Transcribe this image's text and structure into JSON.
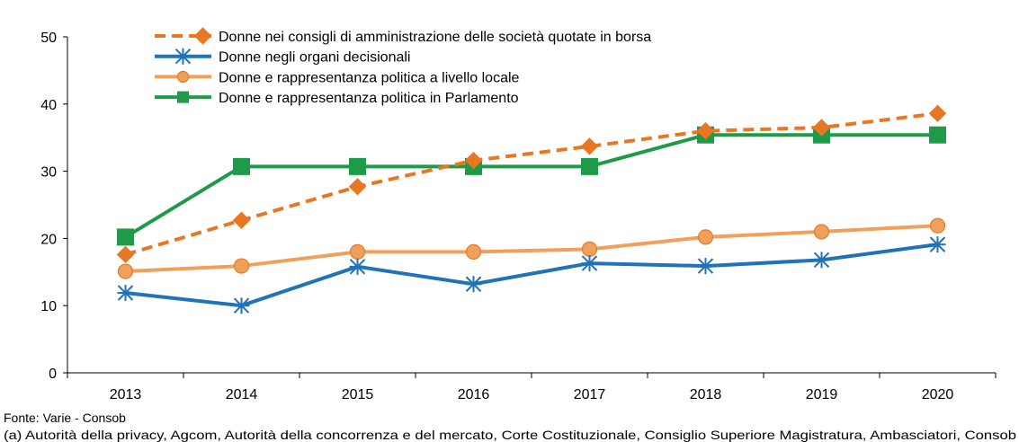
{
  "chart_data": {
    "type": "line",
    "categories": [
      "2013",
      "2014",
      "2015",
      "2016",
      "2017",
      "2018",
      "2019",
      "2020"
    ],
    "series": [
      {
        "name": "Donne nei consigli di amministrazione delle società quotate in borsa",
        "color": "#e87722",
        "marker": "diamond",
        "dashed": true,
        "values": [
          17.6,
          22.7,
          27.7,
          31.6,
          33.7,
          36.0,
          36.5,
          38.6
        ]
      },
      {
        "name": "Donne negli organi decisionali",
        "color": "#1f73b7",
        "marker": "asterisk",
        "dashed": false,
        "values": [
          11.9,
          10.0,
          15.8,
          13.2,
          16.3,
          15.9,
          16.8,
          19.1
        ]
      },
      {
        "name": "Donne e rappresentanza politica a livello locale",
        "color": "#f0a05a",
        "marker": "circle",
        "dashed": false,
        "values": [
          15.1,
          15.9,
          18.0,
          18.0,
          18.4,
          20.2,
          21.0,
          21.9
        ]
      },
      {
        "name": "Donne e rappresentanza politica in Parlamento",
        "color": "#1f9a48",
        "marker": "square",
        "dashed": false,
        "values": [
          20.2,
          30.7,
          30.7,
          30.7,
          30.7,
          35.4,
          35.4,
          35.4
        ]
      }
    ],
    "ylim": [
      0,
      50
    ],
    "yticks": [
      0,
      10,
      20,
      30,
      40,
      50
    ],
    "grid": false,
    "legend": "top-left",
    "footnotes": [
      "Fonte: Varie - Consob",
      "(a) Autorità della privacy, Agcom, Autorità della concorrenza e del mercato, Corte Costituzionale, Consiglio Superiore Magistratura, Ambasciatori, Consob"
    ]
  }
}
